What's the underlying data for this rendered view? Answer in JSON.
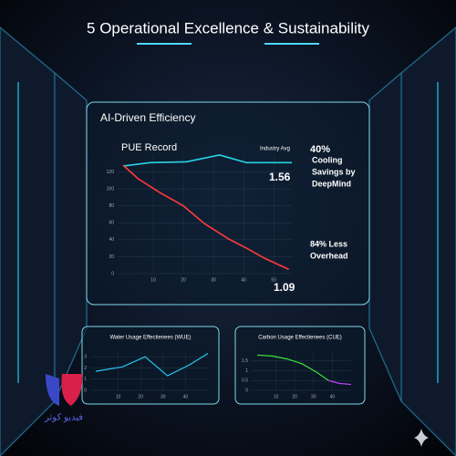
{
  "title": "5 Operational Excellence & Sustainability",
  "panel_title": "AI-Driven Efficiency",
  "brand": "فیدیو کوثر",
  "chart_data": [
    {
      "type": "line",
      "title": "PUE Record",
      "series": [
        {
          "name": "Industry Avg",
          "color": "#27d3e6",
          "x": [
            0,
            9,
            21,
            32,
            41,
            56
          ],
          "values": [
            127,
            131,
            132,
            140,
            131,
            131
          ]
        },
        {
          "color": "#ff3b3b",
          "x": [
            0,
            5,
            12,
            20,
            27,
            35,
            41,
            47,
            55
          ],
          "values": [
            128,
            112,
            96,
            80,
            59,
            41,
            30,
            18,
            5
          ]
        }
      ],
      "xlim": [
        0,
        56
      ],
      "xticks": [
        10,
        20,
        30,
        40,
        50
      ],
      "ylim": [
        0,
        140
      ],
      "yticks": [
        0,
        20,
        40,
        60,
        80,
        100,
        120
      ],
      "grid": true,
      "annotations": [
        "1.56",
        "1.09",
        "40%",
        "Cooling",
        "Savings by",
        "DeepMind",
        "84% Less",
        "Overhead"
      ]
    },
    {
      "type": "line",
      "title": "Water Usage Effectienees (WUE)",
      "series": [
        {
          "color": "#27c8f0",
          "x": [
            0,
            12,
            22,
            32,
            42,
            50
          ],
          "values": [
            1.7,
            2.1,
            3.0,
            1.3,
            2.3,
            3.3
          ]
        }
      ],
      "xlim": [
        0,
        50
      ],
      "xticks": [
        10,
        20,
        30,
        40
      ],
      "ylim": [
        0,
        3.5
      ],
      "yticks": [
        0,
        1,
        2,
        3
      ],
      "grid": true
    },
    {
      "type": "line",
      "title": "Carbon Usage Effectienees (CUE)",
      "series": [
        {
          "color": "#39e639",
          "x": [
            0,
            8,
            16,
            24,
            32,
            38
          ],
          "values": [
            1.8,
            1.75,
            1.6,
            1.35,
            0.9,
            0.5
          ]
        },
        {
          "color": "#c040ff",
          "x": [
            38,
            44,
            50
          ],
          "values": [
            0.5,
            0.35,
            0.3
          ]
        }
      ],
      "xlim": [
        0,
        50
      ],
      "xticks": [
        10,
        20,
        30,
        40
      ],
      "ylim": [
        0,
        2
      ],
      "yticks": [
        0,
        0.5,
        1,
        1.5
      ],
      "grid": true
    }
  ]
}
